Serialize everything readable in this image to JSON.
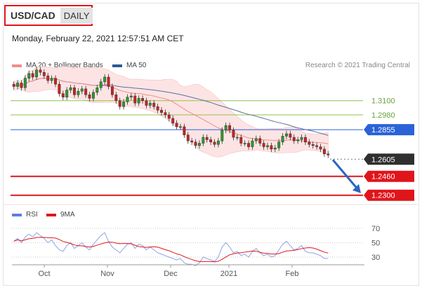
{
  "header": {
    "symbol": "USD/CAD",
    "period": "DAILY",
    "timestamp": "Monday, February 22, 2021 12:57:51 AM CET"
  },
  "legend": {
    "ma20_label": "MA 20 + Bollinger Bands",
    "ma50_label": "MA 50",
    "credit": "Research © 2021 Trading Central"
  },
  "rsi_legend": {
    "rsi_label": "RSI",
    "ma_label": "9MA"
  },
  "colors": {
    "accent_red": "#e0151b",
    "resistance_blue": "#2a62d8",
    "support_green": "#8ec34a",
    "band_fill": "#fde0e0",
    "ma50": "#5a6fa0",
    "price_tag_dark": "#2f2f2f",
    "arrow": "#2b64c0"
  },
  "chart_data": {
    "type": "candlestick",
    "title": "USD/CAD",
    "ylim": [
      1.2245,
      1.33
    ],
    "x_ticks": [
      "Oct",
      "Nov",
      "Dec",
      "2021",
      "Feb"
    ],
    "levels": [
      {
        "value": 1.31,
        "label": "1.3100",
        "kind": "resistance"
      },
      {
        "value": 1.298,
        "label": "1.2980",
        "kind": "resistance"
      },
      {
        "value": 1.2855,
        "label": "1.2855",
        "kind": "pivot"
      },
      {
        "value": 1.2605,
        "label": "1.2605",
        "kind": "last_price"
      },
      {
        "value": 1.246,
        "label": "1.2460",
        "kind": "support"
      },
      {
        "value": 1.23,
        "label": "1.2300",
        "kind": "support"
      }
    ],
    "forecast_arrow": {
      "from": 1.26,
      "to": 1.23,
      "direction": "down"
    },
    "closes": [
      1.322,
      1.325,
      1.321,
      1.329,
      1.333,
      1.33,
      1.336,
      1.334,
      1.331,
      1.327,
      1.329,
      1.324,
      1.316,
      1.313,
      1.319,
      1.321,
      1.315,
      1.318,
      1.32,
      1.315,
      1.312,
      1.317,
      1.321,
      1.326,
      1.33,
      1.322,
      1.315,
      1.31,
      1.305,
      1.309,
      1.313,
      1.314,
      1.308,
      1.312,
      1.31,
      1.306,
      1.308,
      1.305,
      1.302,
      1.3,
      1.298,
      1.295,
      1.291,
      1.288,
      1.288,
      1.281,
      1.276,
      1.275,
      1.272,
      1.274,
      1.279,
      1.277,
      1.275,
      1.273,
      1.276,
      1.285,
      1.289,
      1.285,
      1.279,
      1.279,
      1.274,
      1.274,
      1.271,
      1.276,
      1.278,
      1.274,
      1.271,
      1.272,
      1.269,
      1.27,
      1.275,
      1.28,
      1.282,
      1.279,
      1.276,
      1.277,
      1.279,
      1.275,
      1.273,
      1.272,
      1.271,
      1.269,
      1.265,
      1.264
    ],
    "rsi": [
      52,
      56,
      50,
      58,
      62,
      58,
      64,
      60,
      56,
      50,
      54,
      46,
      40,
      38,
      46,
      50,
      42,
      46,
      50,
      44,
      40,
      48,
      54,
      60,
      64,
      52,
      44,
      40,
      36,
      42,
      48,
      50,
      42,
      48,
      46,
      40,
      44,
      40,
      36,
      34,
      32,
      30,
      28,
      26,
      28,
      22,
      20,
      20,
      18,
      22,
      30,
      28,
      26,
      24,
      30,
      44,
      50,
      44,
      36,
      38,
      32,
      34,
      30,
      38,
      42,
      36,
      32,
      34,
      30,
      32,
      40,
      48,
      52,
      46,
      40,
      42,
      46,
      38,
      36,
      36,
      34,
      32,
      28,
      28
    ],
    "rsi_levels": [
      70,
      50,
      30
    ]
  }
}
